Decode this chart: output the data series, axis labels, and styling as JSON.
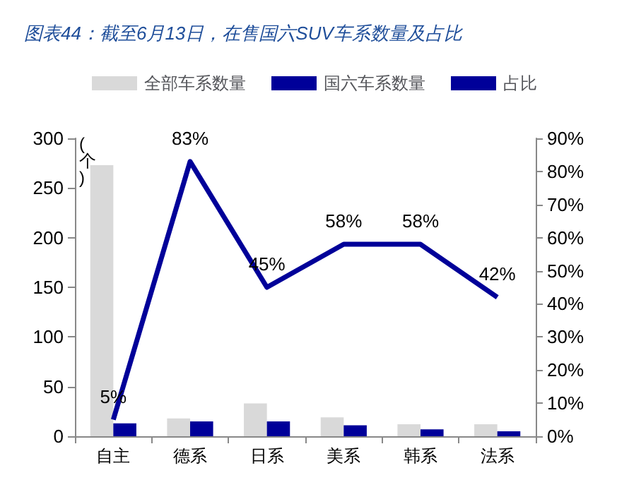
{
  "chart_data": {
    "type": "bar",
    "title": "图表44：截至6月13日，在售国六SUV车系数量及占比",
    "ylabel": "(个)",
    "categories": [
      "自主",
      "德系",
      "日系",
      "美系",
      "韩系",
      "法系"
    ],
    "series": [
      {
        "name": "全部车系数量",
        "color": "#d9d9d9",
        "values": [
          273,
          18,
          33,
          19,
          12,
          12
        ]
      },
      {
        "name": "国六车系数量",
        "color": "#000099",
        "values": [
          13,
          15,
          15,
          11,
          7,
          5
        ]
      },
      {
        "name": "占比",
        "type": "line",
        "axis": "y2",
        "color": "#000099",
        "values": [
          5,
          83,
          45,
          58,
          58,
          42
        ],
        "value_labels": [
          "5%",
          "83%",
          "45%",
          "58%",
          "58%",
          "42%"
        ]
      }
    ],
    "ylim": [
      0,
      300
    ],
    "yticks": [
      0,
      50,
      100,
      150,
      200,
      250,
      300
    ],
    "y2lim": [
      0,
      90
    ],
    "y2ticks": [
      {
        "value": 0,
        "label": "0%"
      },
      {
        "value": 10,
        "label": "10%"
      },
      {
        "value": 20,
        "label": "20%"
      },
      {
        "value": 30,
        "label": "30%"
      },
      {
        "value": 40,
        "label": "40%"
      },
      {
        "value": 50,
        "label": "50%"
      },
      {
        "value": 60,
        "label": "60%"
      },
      {
        "value": 70,
        "label": "70%"
      },
      {
        "value": 80,
        "label": "80%"
      },
      {
        "value": 90,
        "label": "90%"
      }
    ],
    "legend": "top",
    "grid": false,
    "marker": "none"
  }
}
